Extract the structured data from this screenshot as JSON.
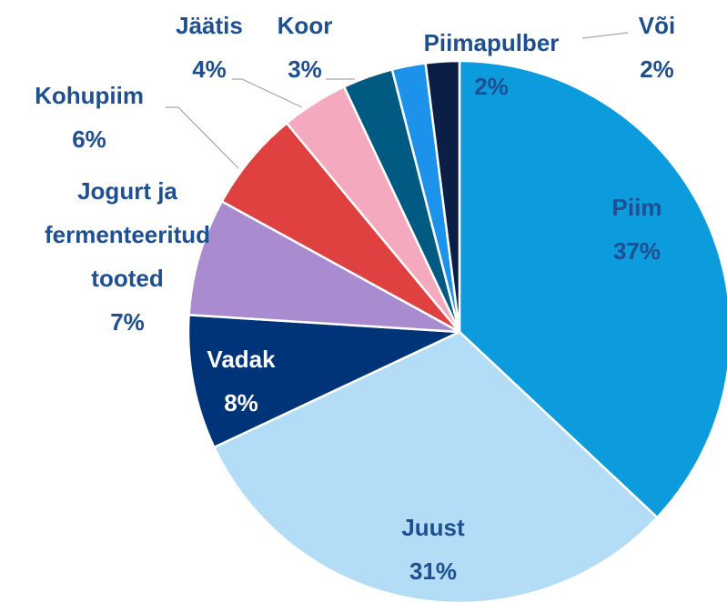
{
  "chart_data": {
    "type": "pie",
    "categories": [
      "Piim",
      "Juust",
      "Vadak",
      "Jogurt ja fermenteeritud tooted",
      "Kohupiim",
      "Jäätis",
      "Koor",
      "Piimapulber",
      "Või"
    ],
    "values": [
      37,
      31,
      8,
      7,
      6,
      4,
      3,
      2,
      2
    ],
    "value_labels": [
      "37%",
      "31%",
      "8%",
      "7%",
      "6%",
      "4%",
      "3%",
      "2%",
      "2%"
    ],
    "colors": [
      "#0c9bdc",
      "#b3dcf6",
      "#003479",
      "#a98bd0",
      "#df4040",
      "#f5a9bf",
      "#005a82",
      "#1c92ea",
      "#0b1f46"
    ]
  }
}
